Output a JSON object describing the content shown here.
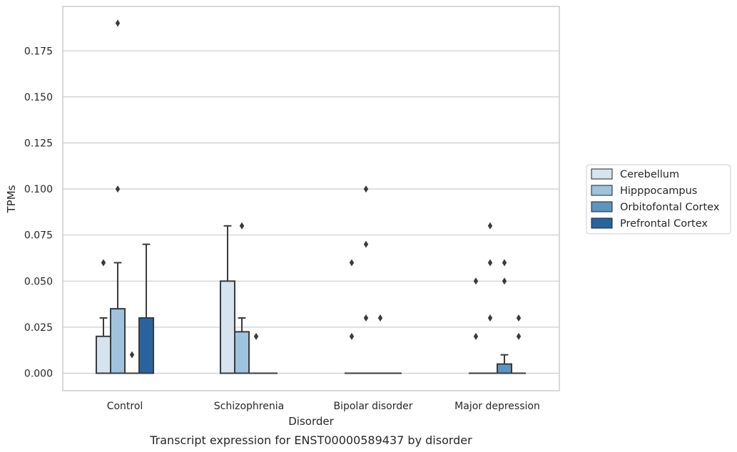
{
  "chart_data": {
    "type": "box",
    "caption": "Transcript expression for ENST00000589437 by disorder",
    "xlabel": "Disorder",
    "ylabel": "TPMs",
    "ylim": [
      -0.0095,
      0.199
    ],
    "yticks": [
      "0.000",
      "0.025",
      "0.050",
      "0.075",
      "0.100",
      "0.125",
      "0.150",
      "0.175"
    ],
    "ytick_values": [
      0,
      0.025,
      0.05,
      0.075,
      0.1,
      0.125,
      0.15,
      0.175
    ],
    "grid": true,
    "legend_position": "right",
    "categories": [
      "Control",
      "Schizophrenia",
      "Bipolar disorder",
      "Major depression"
    ],
    "series": [
      {
        "name": "Cerebellum",
        "color": "#d6e4f0",
        "boxes": [
          {
            "q1": 0,
            "median": 0,
            "q3": 0.02,
            "whisker_low": 0,
            "whisker_high": 0.03,
            "outliers": [
              0.06
            ]
          },
          {
            "q1": 0,
            "median": 0,
            "q3": 0.05,
            "whisker_low": 0,
            "whisker_high": 0.08,
            "outliers": []
          },
          {
            "q1": 0,
            "median": 0,
            "q3": 0,
            "whisker_low": 0,
            "whisker_high": 0,
            "outliers": [
              0.02,
              0.06
            ]
          },
          {
            "q1": 0,
            "median": 0,
            "q3": 0,
            "whisker_low": 0,
            "whisker_high": 0,
            "outliers": [
              0.02,
              0.05
            ]
          }
        ]
      },
      {
        "name": "Hipppocampus",
        "color": "#9dc3de",
        "boxes": [
          {
            "q1": 0,
            "median": 0,
            "q3": 0.035,
            "whisker_low": 0,
            "whisker_high": 0.06,
            "outliers": [
              0.1,
              0.19
            ]
          },
          {
            "q1": 0,
            "median": 0,
            "q3": 0.0225,
            "whisker_low": 0,
            "whisker_high": 0.03,
            "outliers": [
              0.08
            ]
          },
          {
            "q1": 0,
            "median": 0,
            "q3": 0,
            "whisker_low": 0,
            "whisker_high": 0,
            "outliers": [
              0.03,
              0.07,
              0.1
            ]
          },
          {
            "q1": 0,
            "median": 0,
            "q3": 0,
            "whisker_low": 0,
            "whisker_high": 0,
            "outliers": [
              0.03,
              0.06,
              0.08
            ]
          }
        ]
      },
      {
        "name": "Orbitofontal Cortex",
        "color": "#5b95c2",
        "boxes": [
          {
            "q1": 0,
            "median": 0,
            "q3": 0,
            "whisker_low": 0,
            "whisker_high": 0,
            "outliers": [
              0.01
            ]
          },
          {
            "q1": 0,
            "median": 0,
            "q3": 0,
            "whisker_low": 0,
            "whisker_high": 0,
            "outliers": [
              0.02
            ]
          },
          {
            "q1": 0,
            "median": 0,
            "q3": 0,
            "whisker_low": 0,
            "whisker_high": 0,
            "outliers": [
              0.03
            ]
          },
          {
            "q1": 0,
            "median": 0,
            "q3": 0.005,
            "whisker_low": 0,
            "whisker_high": 0.01,
            "outliers": [
              0.05,
              0.06
            ]
          }
        ]
      },
      {
        "name": "Prefrontal Cortex",
        "color": "#2a64a0",
        "boxes": [
          {
            "q1": 0,
            "median": 0,
            "q3": 0.03,
            "whisker_low": 0,
            "whisker_high": 0.07,
            "outliers": []
          },
          {
            "q1": 0,
            "median": 0,
            "q3": 0,
            "whisker_low": 0,
            "whisker_high": 0,
            "outliers": []
          },
          {
            "q1": 0,
            "median": 0,
            "q3": 0,
            "whisker_low": 0,
            "whisker_high": 0,
            "outliers": []
          },
          {
            "q1": 0,
            "median": 0,
            "q3": 0,
            "whisker_low": 0,
            "whisker_high": 0,
            "outliers": [
              0.02,
              0.03
            ]
          }
        ]
      }
    ]
  }
}
